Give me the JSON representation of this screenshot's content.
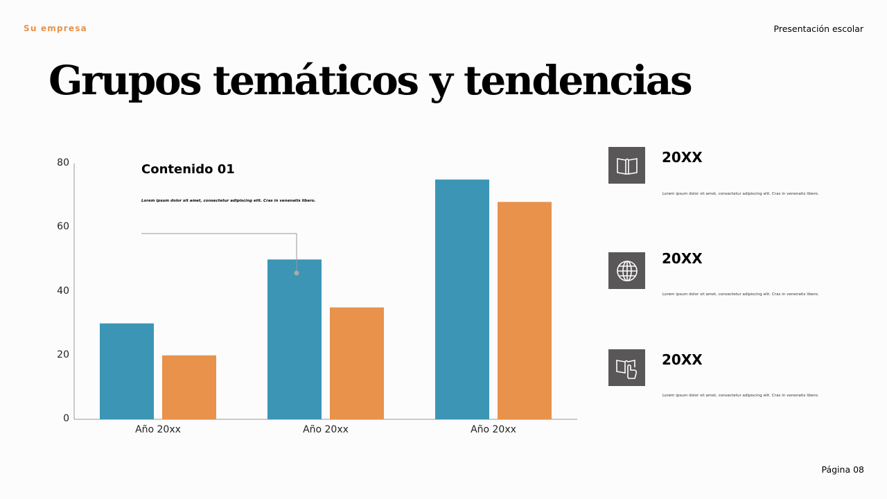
{
  "header": {
    "brand": "Su empresa",
    "presentation_title": "Presentación escolar",
    "brand_color": "#e8924b"
  },
  "title": "Grupos temáticos y tendencias",
  "footer": {
    "page": "Página 08"
  },
  "callout": {
    "title": "Contenido 01",
    "text": "Lorem ipsum dolor sit amet, consectetur adipiscing elit. Cras in venenatis libero."
  },
  "chart_data": {
    "type": "bar",
    "categories": [
      "Año 20xx",
      "Año 20xx",
      "Año 20xx"
    ],
    "series": [
      {
        "values": [
          30,
          50,
          75
        ],
        "color": "#3c95b5"
      },
      {
        "values": [
          20,
          35,
          68
        ],
        "color": "#e8924b"
      }
    ],
    "ylim": [
      0,
      80
    ],
    "yticks": [
      "0",
      "20",
      "40",
      "60",
      "80"
    ],
    "grid": false
  },
  "side_items": [
    {
      "icon": "book-icon",
      "year": "20XX",
      "text": "Lorem ipsum dolor sit amet, consectetur adipiscing elit. Cras in venenatis libero."
    },
    {
      "icon": "globe-icon",
      "year": "20XX",
      "text": "Lorem ipsum dolor sit amet, consectetur adipiscing elit. Cras in venenatis libero."
    },
    {
      "icon": "interactive-book-icon",
      "year": "20XX",
      "text": "Lorem ipsum dolor sit amet, consectetur adipiscing elit. Cras in venenatis libero."
    }
  ]
}
